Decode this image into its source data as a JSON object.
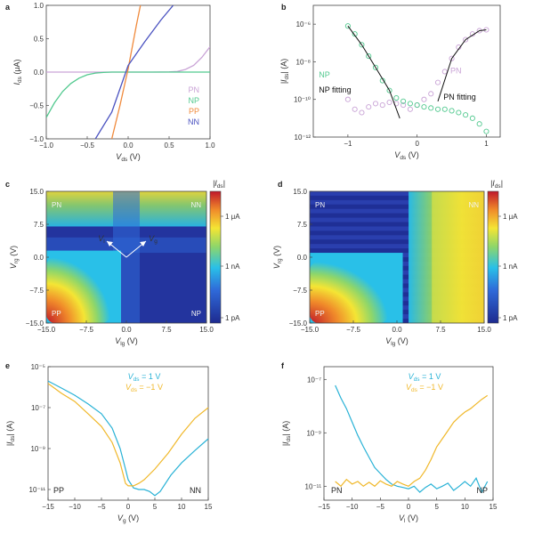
{
  "colors": {
    "PN": "#c9a3d6",
    "NP": "#52c98f",
    "PP": "#f08a3c",
    "NN": "#4a52c0",
    "vds_pos": "#29b2d6",
    "vds_neg": "#f0b82a",
    "fit": "#111111"
  },
  "chart_data": [
    {
      "panel": "a",
      "type": "line",
      "xlabel": "V_ds (V)",
      "ylabel": "I_ds (μA)",
      "xlim": [
        -1.0,
        1.0
      ],
      "ylim": [
        -1.0,
        1.0
      ],
      "xticks": [
        "−1.0",
        "−0.5",
        "0.0",
        "0.5",
        "1.0"
      ],
      "yticks": [
        "−1.0",
        "−0.5",
        "0.0",
        "0.5",
        "1.0"
      ],
      "legend": [
        "PN",
        "NP",
        "PP",
        "NN"
      ],
      "series": [
        {
          "name": "PN",
          "x": [
            -1.0,
            -0.5,
            0,
            0.3,
            0.5,
            0.6,
            0.7,
            0.8,
            0.9,
            1.0
          ],
          "y": [
            0,
            0,
            0,
            0,
            0.002,
            0.01,
            0.04,
            0.1,
            0.22,
            0.38
          ]
        },
        {
          "name": "NP",
          "x": [
            -1.0,
            -0.9,
            -0.8,
            -0.7,
            -0.6,
            -0.5,
            -0.4,
            -0.3,
            -0.2,
            -0.1,
            0,
            1.0
          ],
          "y": [
            -0.68,
            -0.46,
            -0.29,
            -0.17,
            -0.09,
            -0.04,
            -0.015,
            -0.005,
            0,
            0,
            0,
            0
          ]
        },
        {
          "name": "PP",
          "x": [
            -0.2,
            -0.1,
            0,
            0.1,
            0.15
          ],
          "y": [
            -1.0,
            -0.5,
            0.05,
            0.7,
            1.0
          ]
        },
        {
          "name": "NN",
          "x": [
            -0.4,
            -0.2,
            0,
            0.2,
            0.4,
            0.55
          ],
          "y": [
            -1.0,
            -0.6,
            0.1,
            0.45,
            0.78,
            1.0
          ]
        }
      ]
    },
    {
      "panel": "b",
      "type": "scatter",
      "xlabel": "V_ds (V)",
      "ylabel": "|I_ds| (A)",
      "xlim": [
        -1.5,
        1.2
      ],
      "yscale": "log",
      "ylim": [
        1e-12,
        1e-05
      ],
      "xticks": [
        "−1",
        "0",
        "1"
      ],
      "yticks": [
        "10⁻⁶",
        "10⁻⁸",
        "10⁻¹⁰",
        "10⁻¹²"
      ],
      "annotations": [
        "NP",
        "NP fitting",
        "PN",
        "PN fitting"
      ],
      "series": [
        {
          "name": "NP",
          "x": [
            -1.0,
            -0.9,
            -0.8,
            -0.7,
            -0.6,
            -0.5,
            -0.4,
            -0.3,
            -0.2,
            -0.1,
            0,
            0.1,
            0.2,
            0.3,
            0.4,
            0.5,
            0.6,
            0.7,
            0.8,
            0.9,
            1.0
          ],
          "y": [
            8e-07,
            3e-07,
            8e-08,
            2e-08,
            5e-09,
            1e-09,
            3e-10,
            1.2e-10,
            8e-11,
            6e-11,
            5e-11,
            4e-11,
            3.5e-11,
            3e-11,
            3e-11,
            2.5e-11,
            2e-11,
            1.5e-11,
            1e-11,
            5e-12,
            2e-12
          ]
        },
        {
          "name": "PN",
          "x": [
            -1.0,
            -0.9,
            -0.8,
            -0.7,
            -0.6,
            -0.5,
            -0.4,
            -0.3,
            -0.2,
            -0.1,
            0,
            0.1,
            0.2,
            0.3,
            0.4,
            0.5,
            0.6,
            0.7,
            0.8,
            0.9,
            1.0
          ],
          "y": [
            1e-10,
            3e-11,
            2e-11,
            4e-11,
            6e-11,
            5e-11,
            7e-11,
            6e-11,
            5e-11,
            3e-11,
            5e-11,
            1e-10,
            2e-10,
            8e-10,
            3e-09,
            1.5e-08,
            6e-08,
            1.5e-07,
            3e-07,
            4.5e-07,
            5e-07
          ]
        },
        {
          "name": "NP fitting",
          "x": [
            -1.0,
            -0.8,
            -0.6,
            -0.4,
            -0.25
          ],
          "y": [
            8e-07,
            8e-08,
            5e-09,
            3e-10,
            1e-11
          ]
        },
        {
          "name": "PN fitting",
          "x": [
            0.3,
            0.5,
            0.7,
            0.9,
            1.0
          ],
          "y": [
            8e-11,
            1.5e-08,
            1.5e-07,
            4.5e-07,
            5e-07
          ]
        }
      ]
    },
    {
      "panel": "c",
      "type": "heatmap",
      "xlabel": "V_lg (V)",
      "ylabel": "V_rg (V)",
      "xlim": [
        -15,
        15
      ],
      "ylim": [
        -15,
        15
      ],
      "xticks": [
        "−15.0",
        "−7.5",
        "0.0",
        "7.5",
        "15.0"
      ],
      "yticks": [
        "15.0",
        "7.5",
        "0.0",
        "−7.5",
        "−15.0"
      ],
      "regions": [
        "PN",
        "NN",
        "PP",
        "NP"
      ],
      "arrow_labels": [
        "V_l",
        "V_g"
      ],
      "colorbar": {
        "title": "|I_ds|",
        "ticks": [
          "1 μA",
          "1 nA",
          "1 pA"
        ]
      }
    },
    {
      "panel": "d",
      "type": "heatmap",
      "xlabel": "V_lg (V)",
      "ylabel": "V_rg (V)",
      "xlim": [
        -15,
        15
      ],
      "ylim": [
        -15,
        15
      ],
      "xticks": [
        "−15.0",
        "−7.5",
        "0.0",
        "7.5",
        "15.0"
      ],
      "yticks": [
        "15.0",
        "7.5",
        "0.0",
        "−7.5",
        "−15.0"
      ],
      "regions": [
        "PN",
        "NN",
        "PP"
      ],
      "colorbar": {
        "title": "|I_ds|",
        "ticks": [
          "1 μA",
          "1 nA",
          "1 pA"
        ]
      }
    },
    {
      "panel": "e",
      "type": "line",
      "xlabel": "V_g (V)",
      "ylabel": "|I_ds| (A)",
      "xlim": [
        -15,
        15
      ],
      "yscale": "log",
      "ylim": [
        3e-12,
        1e-05
      ],
      "xticks": [
        "−15",
        "−10",
        "−5",
        "0",
        "5",
        "10",
        "15"
      ],
      "yticks": [
        "10⁻⁵",
        "10⁻⁷",
        "10⁻⁹",
        "10⁻¹¹"
      ],
      "regions": [
        "PP",
        "NN"
      ],
      "legend": [
        "V_ds = 1 V",
        "V_ds = −1 V"
      ],
      "series": [
        {
          "name": "V_ds = 1 V",
          "x": [
            -15,
            -12.5,
            -10,
            -7.5,
            -5,
            -3,
            -1.5,
            -0.5,
            0,
            1,
            2,
            3,
            4,
            5,
            6,
            8,
            10,
            12.5,
            15
          ],
          "y": [
            2e-06,
            9e-07,
            4e-07,
            1.5e-07,
            5e-08,
            1e-08,
            1e-09,
            1e-10,
            3e-11,
            1.2e-11,
            1e-11,
            1e-11,
            8e-12,
            5e-12,
            8e-12,
            5e-11,
            2e-10,
            8e-10,
            3e-09
          ]
        },
        {
          "name": "V_ds = −1 V",
          "x": [
            -15,
            -12.5,
            -10,
            -7.5,
            -5,
            -3,
            -1.5,
            -0.5,
            0,
            1,
            2,
            3,
            5,
            7.5,
            10,
            12.5,
            15
          ],
          "y": [
            1.5e-06,
            5e-07,
            2e-07,
            5e-08,
            1.2e-08,
            2e-09,
            2e-10,
            2e-11,
            1.5e-11,
            1.5e-11,
            2e-11,
            3e-11,
            1e-10,
            6e-10,
            5e-09,
            3e-08,
            1e-07
          ]
        }
      ]
    },
    {
      "panel": "f",
      "type": "line",
      "xlabel": "V_l (V)",
      "ylabel": "|I_ds| (A)",
      "xlim": [
        -15,
        15
      ],
      "yscale": "log",
      "ylim": [
        3e-12,
        3e-07
      ],
      "xticks": [
        "−15",
        "−10",
        "−5",
        "0",
        "5",
        "10",
        "15"
      ],
      "yticks": [
        "10⁻⁷",
        "10⁻⁹",
        "10⁻¹¹"
      ],
      "regions": [
        "PN",
        "NP"
      ],
      "legend": [
        "V_ds = 1 V",
        "V_ds = −1 V"
      ],
      "series": [
        {
          "name": "V_ds = 1 V",
          "x": [
            -13,
            -12,
            -11,
            -10,
            -9,
            -8,
            -7,
            -6,
            -5,
            -4,
            -3,
            -2,
            -1,
            0,
            1,
            2,
            3,
            4,
            5,
            6,
            7,
            8,
            9,
            10,
            11,
            12,
            13,
            14
          ],
          "y": [
            6e-08,
            2e-08,
            8e-09,
            2.5e-09,
            8e-10,
            3e-10,
            1.2e-10,
            5e-11,
            3e-11,
            1.8e-11,
            1.2e-11,
            1e-11,
            9e-12,
            8e-12,
            1e-11,
            6e-12,
            9e-12,
            1.2e-11,
            8e-12,
            1e-11,
            1.3e-11,
            7e-12,
            1e-11,
            1.5e-11,
            1e-11,
            2e-11,
            6e-12,
            1.5e-11
          ]
        },
        {
          "name": "V_ds = −1 V",
          "x": [
            -13,
            -12,
            -11,
            -10,
            -9,
            -8,
            -7,
            -6,
            -5,
            -4,
            -3,
            -2,
            -1,
            0,
            1,
            2,
            3,
            4,
            5,
            6,
            7,
            8,
            9,
            10,
            11,
            12,
            13,
            14
          ],
          "y": [
            1.5e-11,
            1e-11,
            1.8e-11,
            1.2e-11,
            1.5e-11,
            1e-11,
            1.4e-11,
            1e-11,
            1.6e-11,
            1.2e-11,
            1e-11,
            1.5e-11,
            1.2e-11,
            1e-11,
            1.5e-11,
            2e-11,
            4e-11,
            1e-10,
            3e-10,
            6e-10,
            1.2e-09,
            2.5e-09,
            4e-09,
            6e-09,
            8e-09,
            1.2e-08,
            1.8e-08,
            2.5e-08
          ]
        }
      ]
    }
  ]
}
